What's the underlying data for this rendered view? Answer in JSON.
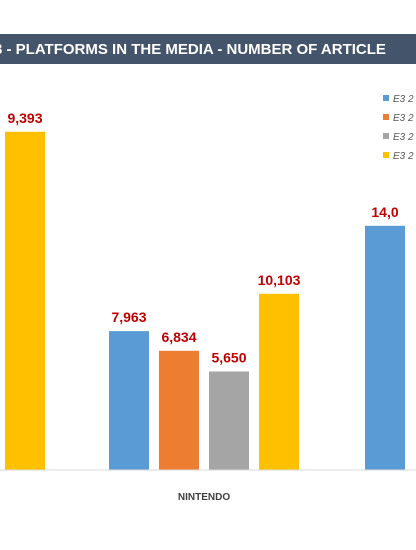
{
  "chart_data": {
    "type": "bar",
    "title": "3 - PLATFORMS IN THE MEDIA - NUMBER OF ARTICLE",
    "categories": [
      "",
      "NINTENDO",
      ""
    ],
    "series": [
      {
        "name": "E3 2",
        "color": "#5b9bd5",
        "values": [
          null,
          7963,
          14000
        ]
      },
      {
        "name": "E3 2",
        "color": "#ed7d31",
        "values": [
          null,
          6834,
          null
        ]
      },
      {
        "name": "E3 2",
        "color": "#a5a5a5",
        "values": [
          null,
          5650,
          null
        ]
      },
      {
        "name": "E3 2",
        "color": "#ffc000",
        "values": [
          19393,
          10103,
          null
        ]
      }
    ],
    "data_labels": [
      {
        "series": 3,
        "category": 0,
        "text": "9,393"
      },
      {
        "series": 0,
        "category": 1,
        "text": "7,963"
      },
      {
        "series": 1,
        "category": 1,
        "text": "6,834"
      },
      {
        "series": 2,
        "category": 1,
        "text": "5,650"
      },
      {
        "series": 3,
        "category": 1,
        "text": "10,103"
      },
      {
        "series": 0,
        "category": 2,
        "text": "14,0"
      }
    ],
    "ylim": [
      0,
      21500
    ],
    "grid": false,
    "legend_position": "top-right"
  }
}
